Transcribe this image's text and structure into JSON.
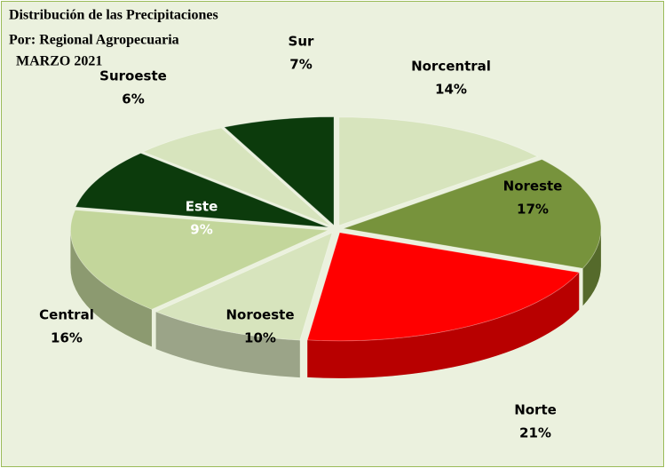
{
  "chart_data": {
    "type": "pie",
    "title_lines": [
      "Distribución de las Precipitaciones",
      "Por: Regional Agropecuaria",
      "MARZO 2021"
    ],
    "categories": [
      "Norcentral",
      "Noreste",
      "Norte",
      "Noroeste",
      "Central",
      "Este",
      "Suroeste",
      "Sur"
    ],
    "values": [
      14,
      17,
      21,
      10,
      16,
      9,
      6,
      7
    ],
    "value_labels": [
      "14%",
      "17%",
      "21%",
      "10%",
      "16%",
      "9%",
      "6%",
      "7%"
    ],
    "colors": [
      "#d7e4bd",
      "#77933c",
      "#ff0000",
      "#d7e4bd",
      "#c3d69b",
      "#0c3b0c",
      "#d7e4bd",
      "#0c3b0c"
    ]
  }
}
